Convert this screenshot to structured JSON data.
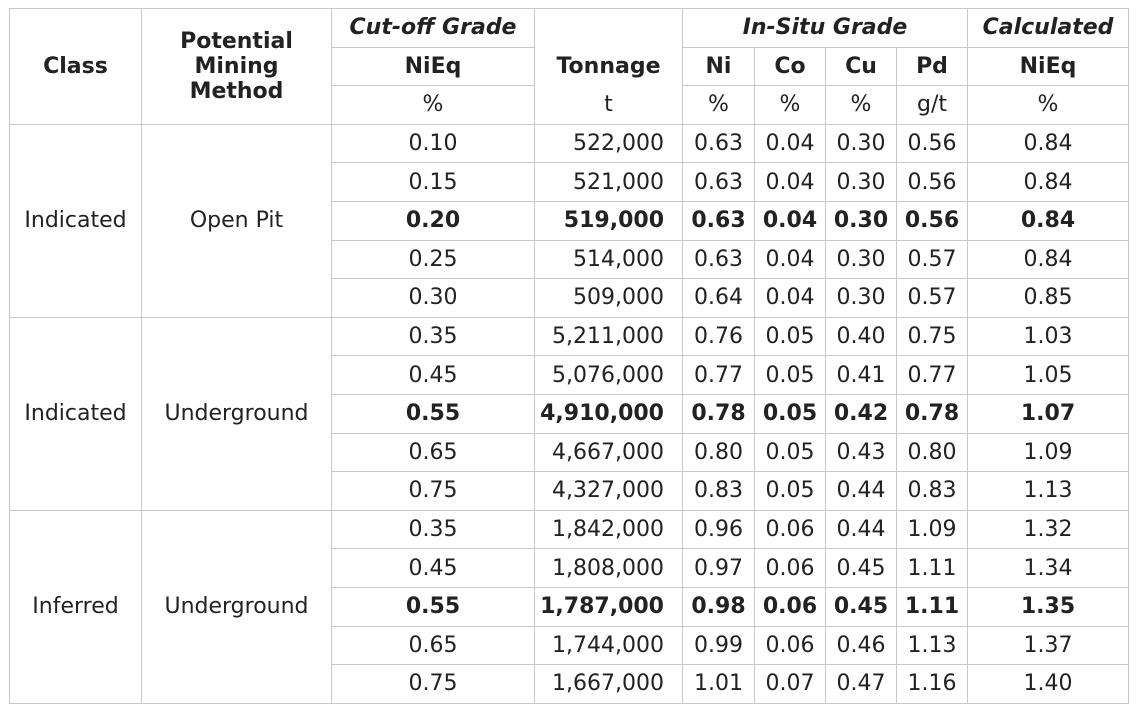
{
  "header": {
    "class": "Class",
    "method_line1": "Potential",
    "method_line2": "Mining",
    "method_line3": "Method",
    "cutoff_group": "Cut-off Grade",
    "cutoff_col": "NiEq",
    "cutoff_unit": "%",
    "tonnage_col": "Tonnage",
    "tonnage_unit": "t",
    "insitu_group": "In-Situ Grade",
    "ni": "Ni",
    "ni_unit": "%",
    "co": "Co",
    "co_unit": "%",
    "cu": "Cu",
    "cu_unit": "%",
    "pd": "Pd",
    "pd_unit": "g/t",
    "calc_group": "Calculated",
    "calc_col": "NiEq",
    "calc_unit": "%"
  },
  "groups": [
    {
      "class": "Indicated",
      "method": "Open Pit",
      "rows": [
        {
          "cutoff": "0.10",
          "tonnage": "522,000",
          "ni": "0.63",
          "co": "0.04",
          "cu": "0.30",
          "pd": "0.56",
          "nieq": "0.84",
          "bold": false
        },
        {
          "cutoff": "0.15",
          "tonnage": "521,000",
          "ni": "0.63",
          "co": "0.04",
          "cu": "0.30",
          "pd": "0.56",
          "nieq": "0.84",
          "bold": false
        },
        {
          "cutoff": "0.20",
          "tonnage": "519,000",
          "ni": "0.63",
          "co": "0.04",
          "cu": "0.30",
          "pd": "0.56",
          "nieq": "0.84",
          "bold": true
        },
        {
          "cutoff": "0.25",
          "tonnage": "514,000",
          "ni": "0.63",
          "co": "0.04",
          "cu": "0.30",
          "pd": "0.57",
          "nieq": "0.84",
          "bold": false
        },
        {
          "cutoff": "0.30",
          "tonnage": "509,000",
          "ni": "0.64",
          "co": "0.04",
          "cu": "0.30",
          "pd": "0.57",
          "nieq": "0.85",
          "bold": false
        }
      ]
    },
    {
      "class": "Indicated",
      "method": "Underground",
      "rows": [
        {
          "cutoff": "0.35",
          "tonnage": "5,211,000",
          "ni": "0.76",
          "co": "0.05",
          "cu": "0.40",
          "pd": "0.75",
          "nieq": "1.03",
          "bold": false
        },
        {
          "cutoff": "0.45",
          "tonnage": "5,076,000",
          "ni": "0.77",
          "co": "0.05",
          "cu": "0.41",
          "pd": "0.77",
          "nieq": "1.05",
          "bold": false
        },
        {
          "cutoff": "0.55",
          "tonnage": "4,910,000",
          "ni": "0.78",
          "co": "0.05",
          "cu": "0.42",
          "pd": "0.78",
          "nieq": "1.07",
          "bold": true
        },
        {
          "cutoff": "0.65",
          "tonnage": "4,667,000",
          "ni": "0.80",
          "co": "0.05",
          "cu": "0.43",
          "pd": "0.80",
          "nieq": "1.09",
          "bold": false
        },
        {
          "cutoff": "0.75",
          "tonnage": "4,327,000",
          "ni": "0.83",
          "co": "0.05",
          "cu": "0.44",
          "pd": "0.83",
          "nieq": "1.13",
          "bold": false
        }
      ]
    },
    {
      "class": "Inferred",
      "method": "Underground",
      "rows": [
        {
          "cutoff": "0.35",
          "tonnage": "1,842,000",
          "ni": "0.96",
          "co": "0.06",
          "cu": "0.44",
          "pd": "1.09",
          "nieq": "1.32",
          "bold": false
        },
        {
          "cutoff": "0.45",
          "tonnage": "1,808,000",
          "ni": "0.97",
          "co": "0.06",
          "cu": "0.45",
          "pd": "1.11",
          "nieq": "1.34",
          "bold": false
        },
        {
          "cutoff": "0.55",
          "tonnage": "1,787,000",
          "ni": "0.98",
          "co": "0.06",
          "cu": "0.45",
          "pd": "1.11",
          "nieq": "1.35",
          "bold": true
        },
        {
          "cutoff": "0.65",
          "tonnage": "1,744,000",
          "ni": "0.99",
          "co": "0.06",
          "cu": "0.46",
          "pd": "1.13",
          "nieq": "1.37",
          "bold": false
        },
        {
          "cutoff": "0.75",
          "tonnage": "1,667,000",
          "ni": "1.01",
          "co": "0.07",
          "cu": "0.47",
          "pd": "1.16",
          "nieq": "1.40",
          "bold": false
        }
      ]
    }
  ]
}
